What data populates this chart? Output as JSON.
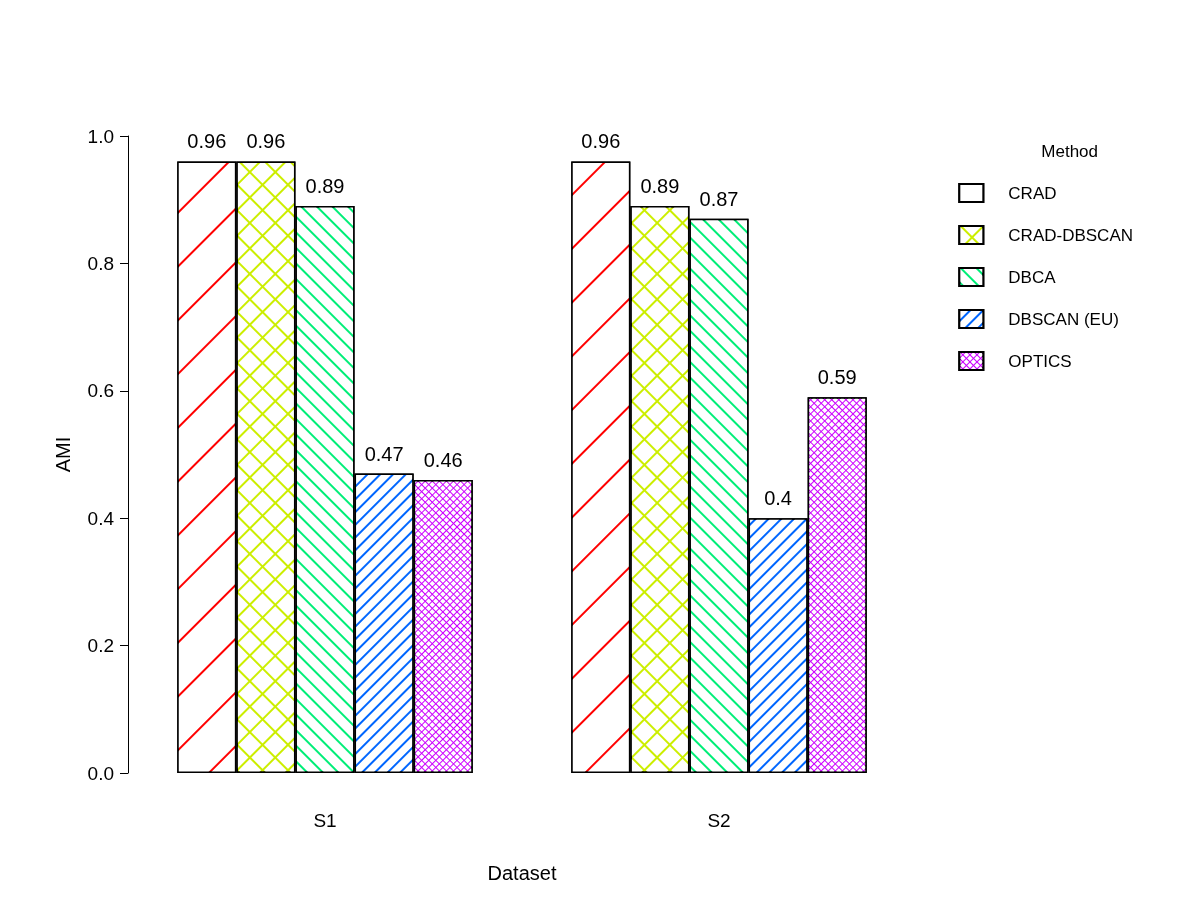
{
  "chart_data": {
    "type": "bar",
    "xlabel": "Dataset",
    "ylabel": "AMI",
    "legend_title": "Method",
    "categories": [
      "S1",
      "S2"
    ],
    "series": [
      {
        "name": "CRAD",
        "color": "#ff0000",
        "values": [
          0.96,
          0.96
        ]
      },
      {
        "name": "CRAD-DBSCAN",
        "color": "#ccee00",
        "values": [
          0.96,
          0.89
        ]
      },
      {
        "name": "DBCA",
        "color": "#00ee77",
        "values": [
          0.89,
          0.87
        ]
      },
      {
        "name": "DBSCAN (EU)",
        "color": "#0066ff",
        "values": [
          0.47,
          0.4
        ]
      },
      {
        "name": "OPTICS",
        "color": "#cc00ff",
        "values": [
          0.46,
          0.59
        ]
      }
    ],
    "ylim": [
      0,
      1
    ],
    "yticks": [
      {
        "value": 0,
        "label": "0.0"
      },
      {
        "value": 0.2,
        "label": "0.2"
      },
      {
        "value": 0.4,
        "label": "0.4"
      },
      {
        "value": 0.6,
        "label": "0.6"
      },
      {
        "value": 0.8,
        "label": "0.8"
      },
      {
        "value": 1,
        "label": "1.0"
      }
    ],
    "data_labels": true,
    "legend": "right",
    "grid": false
  }
}
